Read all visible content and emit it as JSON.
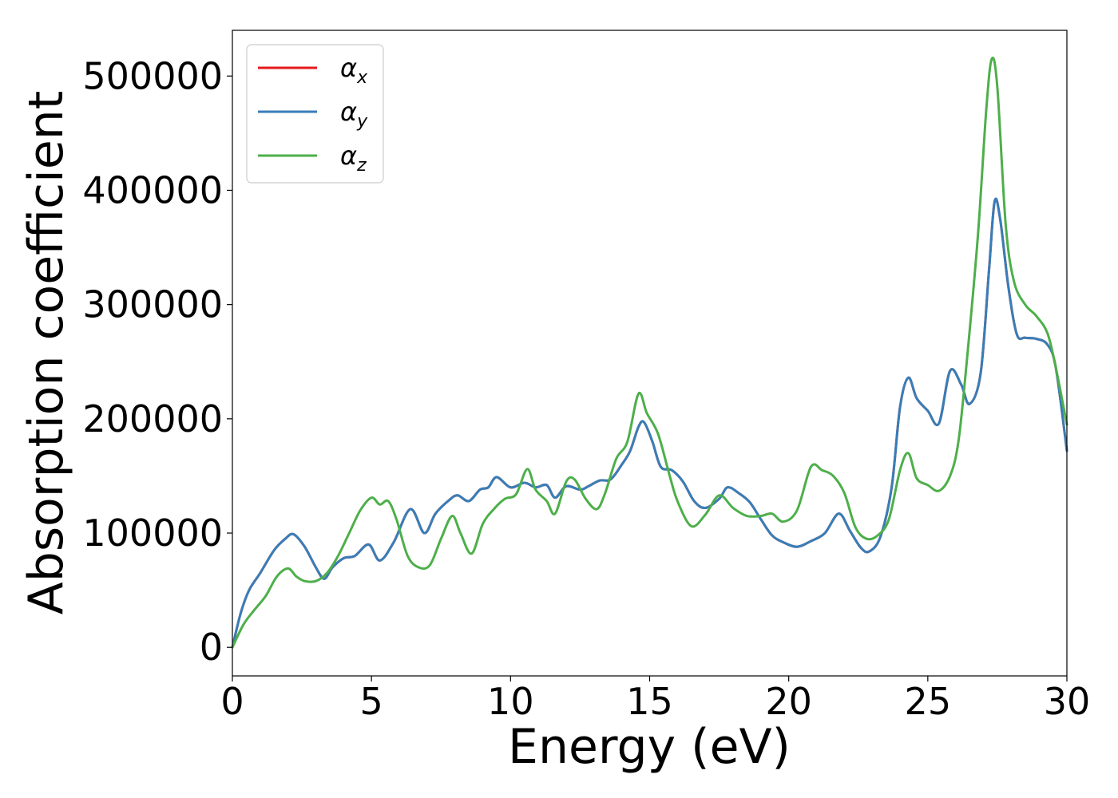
{
  "chart_data": {
    "type": "line",
    "title": "",
    "xlabel": "Energy (eV)",
    "ylabel": "Absorption coefficient",
    "xlim": [
      0,
      30
    ],
    "ylim": [
      -25000,
      540000
    ],
    "xticks": [
      0,
      5,
      10,
      15,
      20,
      25,
      30
    ],
    "xtick_labels": [
      "0",
      "5",
      "10",
      "15",
      "20",
      "25",
      "30"
    ],
    "yticks": [
      0,
      100000,
      200000,
      300000,
      400000,
      500000
    ],
    "ytick_labels": [
      "0",
      "100000",
      "200000",
      "300000",
      "400000",
      "500000"
    ],
    "grid": false,
    "legend_position": "top-left",
    "series": [
      {
        "name": "α_x",
        "label_main": "α",
        "label_sub": "x",
        "color": "#e41a1c",
        "x": [
          0,
          0.3,
          0.6,
          1.0,
          1.5,
          1.9,
          2.2,
          2.6,
          3.0,
          3.3,
          3.6,
          4.0,
          4.4,
          4.9,
          5.3,
          5.8,
          6.4,
          6.9,
          7.3,
          7.8,
          8.1,
          8.5,
          8.9,
          9.2,
          9.5,
          10.0,
          10.5,
          10.9,
          11.3,
          11.6,
          12.0,
          12.5,
          12.8,
          13.2,
          13.6,
          14.0,
          14.3,
          14.6,
          14.8,
          15.1,
          15.4,
          15.8,
          16.2,
          16.6,
          17.0,
          17.5,
          17.8,
          18.2,
          18.6,
          19.0,
          19.4,
          19.8,
          20.3,
          20.8,
          21.3,
          21.8,
          22.2,
          22.6,
          22.9,
          23.3,
          23.7,
          24.0,
          24.3,
          24.6,
          25.0,
          25.4,
          25.8,
          26.2,
          26.5,
          26.9,
          27.2,
          27.4,
          27.6,
          27.9,
          28.2,
          28.5,
          28.9,
          29.3,
          29.6,
          30.0
        ],
        "y": [
          0,
          30000,
          50000,
          65000,
          85000,
          95000,
          99000,
          88000,
          70000,
          60000,
          70000,
          78000,
          80000,
          90000,
          76000,
          92000,
          121000,
          100000,
          117000,
          129000,
          133000,
          128000,
          138000,
          140000,
          149000,
          140000,
          144000,
          140000,
          142000,
          131000,
          141000,
          138000,
          141000,
          146000,
          147000,
          160000,
          172000,
          193000,
          197000,
          180000,
          158000,
          155000,
          145000,
          128000,
          122000,
          130000,
          140000,
          135000,
          127000,
          112000,
          98000,
          92000,
          88000,
          93000,
          100000,
          117000,
          102000,
          87000,
          84000,
          97000,
          140000,
          210000,
          236000,
          218000,
          207000,
          196000,
          242000,
          230000,
          213000,
          240000,
          330000,
          390000,
          375000,
          315000,
          274000,
          271000,
          270000,
          265000,
          245000,
          172000
        ]
      },
      {
        "name": "α_y",
        "label_main": "α",
        "label_sub": "y",
        "color": "#377eb8",
        "x": [
          0,
          0.3,
          0.6,
          1.0,
          1.5,
          1.9,
          2.2,
          2.6,
          3.0,
          3.3,
          3.6,
          4.0,
          4.4,
          4.9,
          5.3,
          5.8,
          6.4,
          6.9,
          7.3,
          7.8,
          8.1,
          8.5,
          8.9,
          9.2,
          9.5,
          10.0,
          10.5,
          10.9,
          11.3,
          11.6,
          12.0,
          12.5,
          12.8,
          13.2,
          13.6,
          14.0,
          14.3,
          14.6,
          14.8,
          15.1,
          15.4,
          15.8,
          16.2,
          16.6,
          17.0,
          17.5,
          17.8,
          18.2,
          18.6,
          19.0,
          19.4,
          19.8,
          20.3,
          20.8,
          21.3,
          21.8,
          22.2,
          22.6,
          22.9,
          23.3,
          23.7,
          24.0,
          24.3,
          24.6,
          25.0,
          25.4,
          25.8,
          26.2,
          26.5,
          26.9,
          27.2,
          27.4,
          27.6,
          27.9,
          28.2,
          28.5,
          28.9,
          29.3,
          29.6,
          30.0
        ],
        "y": [
          0,
          30000,
          50000,
          65000,
          85000,
          95000,
          99000,
          88000,
          70000,
          60000,
          70000,
          78000,
          80000,
          90000,
          76000,
          92000,
          121000,
          100000,
          117000,
          129000,
          133000,
          128000,
          138000,
          140000,
          149000,
          140000,
          144000,
          140000,
          142000,
          131000,
          141000,
          138000,
          141000,
          146000,
          147000,
          160000,
          172000,
          193000,
          197000,
          180000,
          158000,
          155000,
          145000,
          128000,
          122000,
          130000,
          140000,
          135000,
          127000,
          112000,
          98000,
          92000,
          88000,
          93000,
          100000,
          117000,
          102000,
          87000,
          84000,
          97000,
          140000,
          210000,
          236000,
          218000,
          207000,
          196000,
          242000,
          230000,
          213000,
          240000,
          330000,
          390000,
          375000,
          315000,
          274000,
          271000,
          270000,
          265000,
          245000,
          172000
        ]
      },
      {
        "name": "α_z",
        "label_main": "α",
        "label_sub": "z",
        "color": "#4daf4a",
        "x": [
          0,
          0.4,
          0.8,
          1.2,
          1.6,
          2.0,
          2.3,
          2.6,
          3.0,
          3.4,
          3.8,
          4.2,
          4.6,
          5.0,
          5.3,
          5.6,
          5.9,
          6.3,
          6.7,
          7.1,
          7.5,
          7.9,
          8.2,
          8.6,
          9.0,
          9.4,
          9.8,
          10.2,
          10.6,
          10.9,
          11.3,
          11.6,
          12.0,
          12.3,
          12.7,
          13.1,
          13.4,
          13.8,
          14.2,
          14.6,
          14.9,
          15.3,
          15.7,
          16.0,
          16.5,
          17.0,
          17.5,
          18.0,
          18.5,
          19.0,
          19.4,
          19.8,
          20.3,
          20.8,
          21.2,
          21.6,
          22.0,
          22.4,
          22.8,
          23.2,
          23.6,
          24.0,
          24.3,
          24.6,
          25.0,
          25.4,
          25.8,
          26.1,
          26.4,
          26.8,
          27.1,
          27.3,
          27.5,
          27.8,
          28.1,
          28.5,
          28.9,
          29.3,
          29.6,
          30.0
        ],
        "y": [
          0,
          20000,
          33000,
          45000,
          62000,
          69000,
          62000,
          58000,
          58000,
          65000,
          80000,
          100000,
          120000,
          131000,
          125000,
          128000,
          112000,
          80000,
          70000,
          72000,
          95000,
          115000,
          100000,
          82000,
          108000,
          121000,
          130000,
          134000,
          156000,
          138000,
          128000,
          117000,
          145000,
          147000,
          130000,
          121000,
          135000,
          165000,
          180000,
          222000,
          205000,
          187000,
          152000,
          128000,
          106000,
          116000,
          133000,
          122000,
          115000,
          115000,
          117000,
          110000,
          120000,
          158000,
          155000,
          150000,
          135000,
          105000,
          95000,
          98000,
          112000,
          155000,
          170000,
          148000,
          142000,
          137000,
          150000,
          180000,
          250000,
          360000,
          470000,
          515000,
          490000,
          370000,
          320000,
          300000,
          290000,
          275000,
          245000,
          195000
        ]
      }
    ]
  }
}
